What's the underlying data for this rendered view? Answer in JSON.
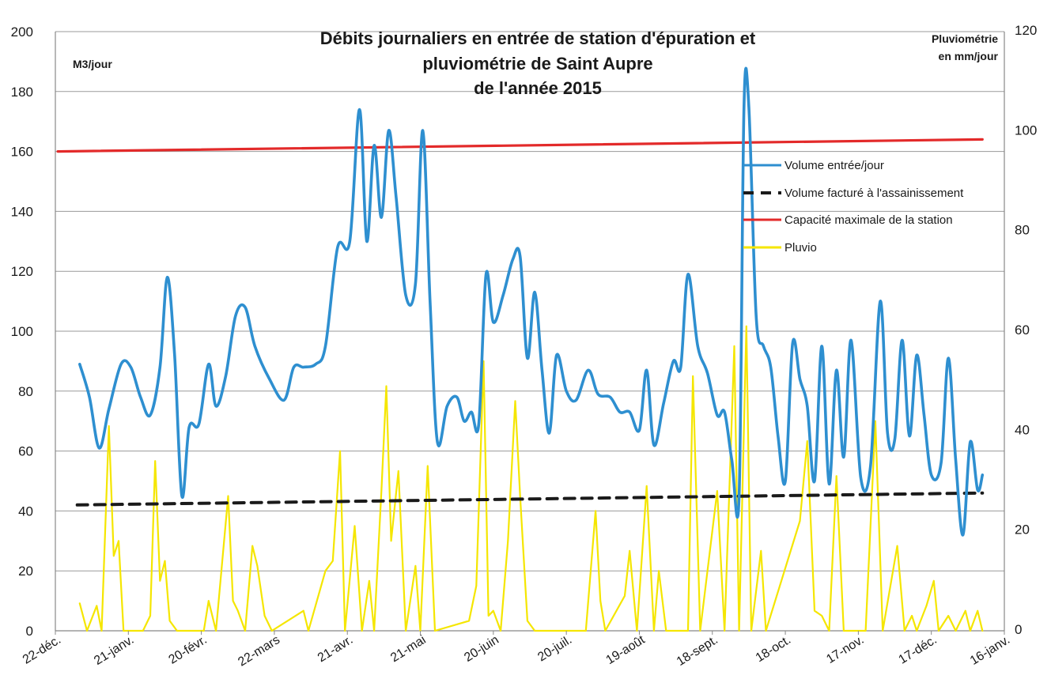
{
  "chart_data": {
    "type": "line",
    "title_lines": [
      "Débits journaliers en entrée de station d'épuration et",
      "pluviométrie de Saint Aupre",
      "de l'année  2015"
    ],
    "ylabel_left": "M3/jour",
    "ylabel_right_lines": [
      "Pluviométrie",
      "en mm/jour"
    ],
    "ylim_left": [
      0,
      200
    ],
    "yticks_left": [
      0,
      20,
      40,
      60,
      80,
      100,
      120,
      140,
      160,
      180,
      200
    ],
    "ylim_right": [
      0,
      120
    ],
    "yticks_right": [
      0,
      20,
      40,
      60,
      80,
      100,
      120
    ],
    "xlim": [
      "2014-12-22",
      "2016-01-16"
    ],
    "x_tick_labels": [
      "22-déc.",
      "21-janv.",
      "20-févr.",
      "22-mars",
      "21-avr.",
      "21-mai",
      "20-juin",
      "20-juil.",
      "19-août",
      "18-sept.",
      "18-oct.",
      "17-nov.",
      "17-déc.",
      "16-janv."
    ],
    "grid": "horizontal",
    "legend_position": "right",
    "series": [
      {
        "name": "Volume entrée/jour",
        "axis": "left",
        "color": "#2e8fd0",
        "points": [
          [
            "2015-01-01",
            89
          ],
          [
            "2015-01-05",
            78
          ],
          [
            "2015-01-09",
            61
          ],
          [
            "2015-01-13",
            74
          ],
          [
            "2015-01-18",
            89
          ],
          [
            "2015-01-22",
            88
          ],
          [
            "2015-01-26",
            78
          ],
          [
            "2015-01-30",
            72
          ],
          [
            "2015-02-03",
            88
          ],
          [
            "2015-02-06",
            118
          ],
          [
            "2015-02-09",
            92
          ],
          [
            "2015-02-12",
            45
          ],
          [
            "2015-02-15",
            68
          ],
          [
            "2015-02-19",
            69
          ],
          [
            "2015-02-23",
            89
          ],
          [
            "2015-02-26",
            75
          ],
          [
            "2015-03-02",
            85
          ],
          [
            "2015-03-06",
            105
          ],
          [
            "2015-03-10",
            108
          ],
          [
            "2015-03-14",
            95
          ],
          [
            "2015-03-20",
            84
          ],
          [
            "2015-03-26",
            77
          ],
          [
            "2015-03-30",
            88
          ],
          [
            "2015-04-03",
            88
          ],
          [
            "2015-04-08",
            89
          ],
          [
            "2015-04-12",
            95
          ],
          [
            "2015-04-17",
            128
          ],
          [
            "2015-04-22",
            130
          ],
          [
            "2015-04-26",
            174
          ],
          [
            "2015-04-29",
            130
          ],
          [
            "2015-05-02",
            162
          ],
          [
            "2015-05-05",
            138
          ],
          [
            "2015-05-08",
            167
          ],
          [
            "2015-05-11",
            145
          ],
          [
            "2015-05-15",
            112
          ],
          [
            "2015-05-19",
            116
          ],
          [
            "2015-05-22",
            167
          ],
          [
            "2015-05-25",
            110
          ],
          [
            "2015-05-28",
            63
          ],
          [
            "2015-06-01",
            75
          ],
          [
            "2015-06-05",
            78
          ],
          [
            "2015-06-08",
            70
          ],
          [
            "2015-06-11",
            73
          ],
          [
            "2015-06-14",
            69
          ],
          [
            "2015-06-17",
            119
          ],
          [
            "2015-06-20",
            103
          ],
          [
            "2015-06-24",
            112
          ],
          [
            "2015-06-28",
            124
          ],
          [
            "2015-07-01",
            125
          ],
          [
            "2015-07-04",
            91
          ],
          [
            "2015-07-07",
            113
          ],
          [
            "2015-07-10",
            87
          ],
          [
            "2015-07-13",
            66
          ],
          [
            "2015-07-16",
            92
          ],
          [
            "2015-07-20",
            80
          ],
          [
            "2015-07-24",
            77
          ],
          [
            "2015-07-29",
            87
          ],
          [
            "2015-08-02",
            79
          ],
          [
            "2015-08-07",
            78
          ],
          [
            "2015-08-11",
            73
          ],
          [
            "2015-08-15",
            73
          ],
          [
            "2015-08-19",
            67
          ],
          [
            "2015-08-22",
            87
          ],
          [
            "2015-08-25",
            62
          ],
          [
            "2015-08-29",
            76
          ],
          [
            "2015-09-02",
            90
          ],
          [
            "2015-09-05",
            88
          ],
          [
            "2015-09-08",
            119
          ],
          [
            "2015-09-12",
            95
          ],
          [
            "2015-09-16",
            86
          ],
          [
            "2015-09-20",
            72
          ],
          [
            "2015-09-23",
            73
          ],
          [
            "2015-09-26",
            57
          ],
          [
            "2015-09-29",
            45
          ],
          [
            "2015-10-01",
            175
          ],
          [
            "2015-10-03",
            175
          ],
          [
            "2015-10-06",
            105
          ],
          [
            "2015-10-09",
            95
          ],
          [
            "2015-10-12",
            88
          ],
          [
            "2015-10-15",
            65
          ],
          [
            "2015-10-18",
            50
          ],
          [
            "2015-10-21",
            96
          ],
          [
            "2015-10-24",
            84
          ],
          [
            "2015-10-27",
            75
          ],
          [
            "2015-10-30",
            50
          ],
          [
            "2015-11-02",
            95
          ],
          [
            "2015-11-05",
            49
          ],
          [
            "2015-11-08",
            87
          ],
          [
            "2015-11-11",
            58
          ],
          [
            "2015-11-14",
            97
          ],
          [
            "2015-11-18",
            51
          ],
          [
            "2015-11-22",
            55
          ],
          [
            "2015-11-26",
            110
          ],
          [
            "2015-11-29",
            66
          ],
          [
            "2015-12-02",
            64
          ],
          [
            "2015-12-05",
            97
          ],
          [
            "2015-12-08",
            65
          ],
          [
            "2015-12-11",
            92
          ],
          [
            "2015-12-14",
            72
          ],
          [
            "2015-12-17",
            52
          ],
          [
            "2015-12-21",
            56
          ],
          [
            "2015-12-24",
            91
          ],
          [
            "2015-12-27",
            57
          ],
          [
            "2015-12-30",
            32
          ],
          [
            "2016-01-02",
            63
          ],
          [
            "2016-01-05",
            47
          ],
          [
            "2016-01-07",
            52
          ]
        ]
      },
      {
        "name": "Volume facturé à l'assainissement",
        "axis": "left",
        "color": "#1a1a1a",
        "dash": true,
        "points": [
          [
            "2014-12-31",
            42
          ],
          [
            "2016-01-07",
            46
          ]
        ]
      },
      {
        "name": "Capacité maximale de la station",
        "axis": "left",
        "color": "#e32a2a",
        "points": [
          [
            "2014-12-23",
            160
          ],
          [
            "2016-01-07",
            164
          ]
        ]
      },
      {
        "name": "Pluvio",
        "axis": "right",
        "color": "#f5e600",
        "points": [
          [
            "2015-01-01",
            5.5
          ],
          [
            "2015-01-04",
            0
          ],
          [
            "2015-01-08",
            5
          ],
          [
            "2015-01-10",
            0
          ],
          [
            "2015-01-13",
            41
          ],
          [
            "2015-01-15",
            15
          ],
          [
            "2015-01-17",
            18
          ],
          [
            "2015-01-19",
            0
          ],
          [
            "2015-01-27",
            0
          ],
          [
            "2015-01-30",
            3
          ],
          [
            "2015-02-01",
            34
          ],
          [
            "2015-02-03",
            10
          ],
          [
            "2015-02-05",
            14
          ],
          [
            "2015-02-07",
            2
          ],
          [
            "2015-02-10",
            0
          ],
          [
            "2015-02-21",
            0
          ],
          [
            "2015-02-23",
            6
          ],
          [
            "2015-02-26",
            0
          ],
          [
            "2015-03-03",
            27
          ],
          [
            "2015-03-05",
            6
          ],
          [
            "2015-03-07",
            4
          ],
          [
            "2015-03-10",
            0
          ],
          [
            "2015-03-13",
            17
          ],
          [
            "2015-03-15",
            13
          ],
          [
            "2015-03-18",
            3
          ],
          [
            "2015-03-21",
            0
          ],
          [
            "2015-04-03",
            4
          ],
          [
            "2015-04-05",
            0
          ],
          [
            "2015-04-12",
            12
          ],
          [
            "2015-04-15",
            14
          ],
          [
            "2015-04-18",
            36
          ],
          [
            "2015-04-20",
            0
          ],
          [
            "2015-04-24",
            21
          ],
          [
            "2015-04-27",
            0
          ],
          [
            "2015-04-30",
            10
          ],
          [
            "2015-05-02",
            0
          ],
          [
            "2015-05-05",
            28
          ],
          [
            "2015-05-07",
            49
          ],
          [
            "2015-05-09",
            18
          ],
          [
            "2015-05-12",
            32
          ],
          [
            "2015-05-15",
            0
          ],
          [
            "2015-05-19",
            13
          ],
          [
            "2015-05-21",
            0
          ],
          [
            "2015-05-24",
            33
          ],
          [
            "2015-05-27",
            0
          ],
          [
            "2015-06-10",
            2
          ],
          [
            "2015-06-13",
            9
          ],
          [
            "2015-06-16",
            54
          ],
          [
            "2015-06-18",
            3
          ],
          [
            "2015-06-20",
            4
          ],
          [
            "2015-06-23",
            0
          ],
          [
            "2015-06-26",
            18
          ],
          [
            "2015-06-29",
            46
          ],
          [
            "2015-07-01",
            27
          ],
          [
            "2015-07-04",
            2
          ],
          [
            "2015-07-07",
            0
          ],
          [
            "2015-07-28",
            0
          ],
          [
            "2015-08-01",
            24
          ],
          [
            "2015-08-03",
            6
          ],
          [
            "2015-08-05",
            0
          ],
          [
            "2015-08-13",
            7
          ],
          [
            "2015-08-15",
            16
          ],
          [
            "2015-08-18",
            0
          ],
          [
            "2015-08-22",
            29
          ],
          [
            "2015-08-25",
            0
          ],
          [
            "2015-08-27",
            12
          ],
          [
            "2015-08-30",
            0
          ],
          [
            "2015-09-08",
            0
          ],
          [
            "2015-09-10",
            51
          ],
          [
            "2015-09-13",
            0
          ],
          [
            "2015-09-20",
            28
          ],
          [
            "2015-09-23",
            0
          ],
          [
            "2015-09-27",
            57
          ],
          [
            "2015-09-29",
            0
          ],
          [
            "2015-10-02",
            61
          ],
          [
            "2015-10-04",
            0
          ],
          [
            "2015-10-08",
            16
          ],
          [
            "2015-10-10",
            0
          ],
          [
            "2015-10-24",
            22
          ],
          [
            "2015-10-27",
            38
          ],
          [
            "2015-10-30",
            4
          ],
          [
            "2015-11-02",
            3
          ],
          [
            "2015-11-05",
            0
          ],
          [
            "2015-11-08",
            31
          ],
          [
            "2015-11-11",
            0
          ],
          [
            "2015-11-17",
            0
          ],
          [
            "2015-11-20",
            0
          ],
          [
            "2015-11-24",
            42
          ],
          [
            "2015-11-27",
            0
          ],
          [
            "2015-12-03",
            17
          ],
          [
            "2015-12-06",
            0
          ],
          [
            "2015-12-09",
            3
          ],
          [
            "2015-12-11",
            0
          ],
          [
            "2015-12-15",
            5
          ],
          [
            "2015-12-18",
            10
          ],
          [
            "2015-12-20",
            0
          ],
          [
            "2015-12-24",
            3
          ],
          [
            "2015-12-27",
            0
          ],
          [
            "2015-12-31",
            4
          ],
          [
            "2016-01-02",
            0
          ],
          [
            "2016-01-05",
            4
          ],
          [
            "2016-01-07",
            0
          ]
        ]
      }
    ]
  }
}
